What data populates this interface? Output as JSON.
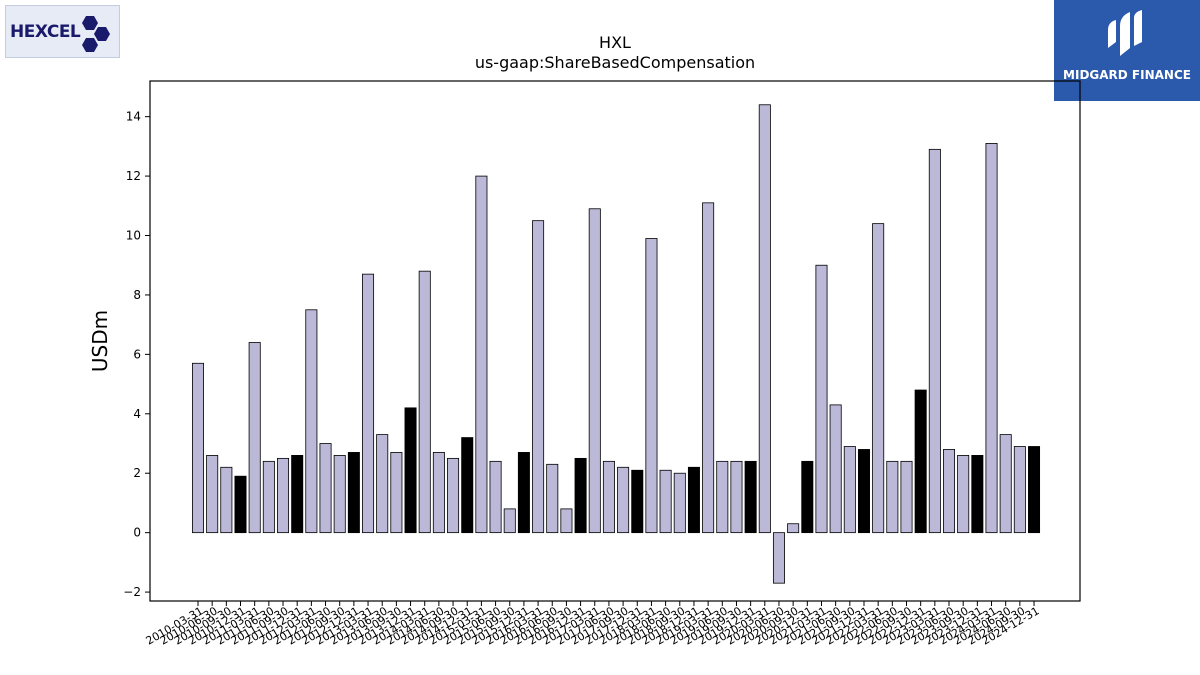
{
  "logos": {
    "left_text": "HEXCEL",
    "right_text": "MIDGARD FINANCE"
  },
  "colors": {
    "bar_default": "#bcb8d8",
    "bar_highlight": "#000000",
    "logo_right_bg": "#2b5aad",
    "logo_left_text": "#1a1a6c"
  },
  "chart_data": {
    "type": "bar",
    "title": "HXL",
    "subtitle": "us-gaap:ShareBasedCompensation",
    "ylabel": "USDm",
    "xlabel": "",
    "ylim": [
      -2.3,
      15.2
    ],
    "yticks": [
      -2,
      0,
      2,
      4,
      6,
      8,
      10,
      12,
      14
    ],
    "categories": [
      "2010-03-31",
      "2010-06-30",
      "2010-09-30",
      "2010-12-31",
      "2011-03-31",
      "2011-06-30",
      "2011-09-30",
      "2011-12-31",
      "2012-03-31",
      "2012-06-30",
      "2012-09-30",
      "2012-12-31",
      "2013-03-31",
      "2013-06-30",
      "2013-09-30",
      "2013-12-31",
      "2014-03-31",
      "2014-06-30",
      "2014-09-30",
      "2014-12-31",
      "2015-03-31",
      "2015-06-30",
      "2015-09-30",
      "2015-12-31",
      "2016-03-31",
      "2016-06-30",
      "2016-09-30",
      "2016-12-31",
      "2017-03-31",
      "2017-06-30",
      "2017-09-30",
      "2017-12-31",
      "2018-03-31",
      "2018-06-30",
      "2018-09-30",
      "2018-12-31",
      "2019-03-31",
      "2019-06-30",
      "2019-09-30",
      "2019-12-31",
      "2020-03-31",
      "2020-06-30",
      "2020-09-30",
      "2020-12-31",
      "2021-03-31",
      "2021-06-30",
      "2021-09-30",
      "2021-12-31",
      "2022-03-31",
      "2022-06-30",
      "2022-09-30",
      "2022-12-31",
      "2023-03-31",
      "2023-06-30",
      "2023-09-30",
      "2023-12-31",
      "2024-03-31",
      "2024-06-30",
      "2024-09-30",
      "2024-12-31"
    ],
    "values": [
      5.7,
      2.6,
      2.2,
      1.9,
      6.4,
      2.4,
      2.5,
      2.6,
      7.5,
      3.0,
      2.6,
      2.7,
      8.7,
      3.3,
      2.7,
      4.2,
      8.8,
      2.7,
      2.5,
      3.2,
      12.0,
      2.4,
      0.8,
      2.7,
      10.5,
      2.3,
      0.8,
      2.5,
      10.9,
      2.4,
      2.2,
      2.1,
      9.9,
      2.1,
      2.0,
      2.2,
      11.1,
      2.4,
      2.4,
      2.4,
      14.4,
      -1.7,
      0.3,
      2.4,
      9.0,
      4.3,
      2.9,
      2.8,
      10.4,
      2.4,
      2.4,
      4.8,
      12.9,
      2.8,
      2.6,
      2.6,
      13.1,
      3.3,
      2.9,
      2.9
    ],
    "highlight_quarter": "Q4",
    "grid": false,
    "legend": "none"
  }
}
